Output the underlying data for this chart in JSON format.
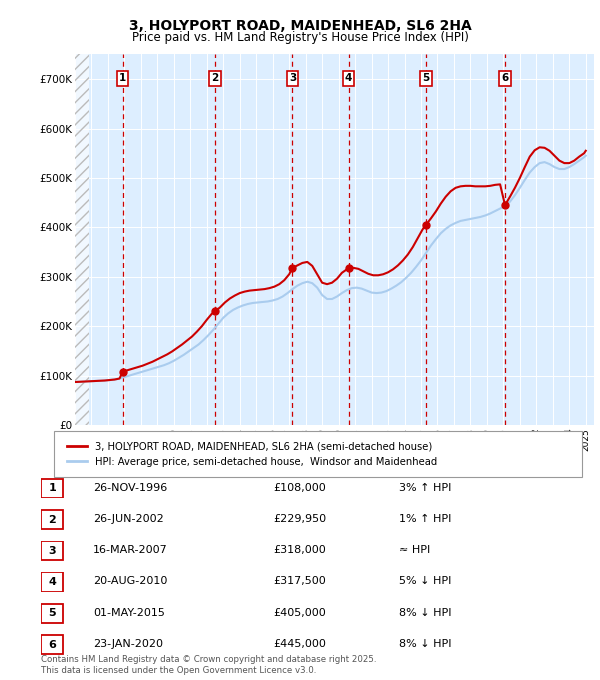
{
  "title": "3, HOLYPORT ROAD, MAIDENHEAD, SL6 2HA",
  "subtitle": "Price paid vs. HM Land Registry's House Price Index (HPI)",
  "hpi_label": "HPI: Average price, semi-detached house,  Windsor and Maidenhead",
  "property_label": "3, HOLYPORT ROAD, MAIDENHEAD, SL6 2HA (semi-detached house)",
  "footer": "Contains HM Land Registry data © Crown copyright and database right 2025.\nThis data is licensed under the Open Government Licence v3.0.",
  "ylim": [
    0,
    750000
  ],
  "yticks": [
    0,
    100000,
    200000,
    300000,
    400000,
    500000,
    600000,
    700000
  ],
  "ytick_labels": [
    "£0",
    "£100K",
    "£200K",
    "£300K",
    "£400K",
    "£500K",
    "£600K",
    "£700K"
  ],
  "sales": [
    {
      "num": 1,
      "date": "26-NOV-1996",
      "year": 1996.9,
      "price": 108000,
      "hpi_rel": "3% ↑ HPI"
    },
    {
      "num": 2,
      "date": "26-JUN-2002",
      "year": 2002.5,
      "price": 229950,
      "hpi_rel": "1% ↑ HPI"
    },
    {
      "num": 3,
      "date": "16-MAR-2007",
      "year": 2007.2,
      "price": 318000,
      "hpi_rel": "≈ HPI"
    },
    {
      "num": 4,
      "date": "20-AUG-2010",
      "year": 2010.6,
      "price": 317500,
      "hpi_rel": "5% ↓ HPI"
    },
    {
      "num": 5,
      "date": "01-MAY-2015",
      "year": 2015.3,
      "price": 405000,
      "hpi_rel": "8% ↓ HPI"
    },
    {
      "num": 6,
      "date": "23-JAN-2020",
      "year": 2020.1,
      "price": 445000,
      "hpi_rel": "8% ↓ HPI"
    }
  ],
  "property_color": "#cc0000",
  "hpi_color": "#aaccee",
  "vline_color": "#cc0000",
  "background_color": "#ddeeff",
  "grid_color": "#ffffff",
  "xlim_start": 1994,
  "xlim_end": 2025.5,
  "hpi_data_years": [
    1994.0,
    1994.3,
    1994.6,
    1994.9,
    1995.2,
    1995.5,
    1995.8,
    1996.1,
    1996.4,
    1996.7,
    1997.0,
    1997.3,
    1997.6,
    1997.9,
    1998.2,
    1998.5,
    1998.8,
    1999.1,
    1999.4,
    1999.7,
    2000.0,
    2000.3,
    2000.6,
    2000.9,
    2001.2,
    2001.5,
    2001.8,
    2002.1,
    2002.4,
    2002.7,
    2003.0,
    2003.3,
    2003.6,
    2003.9,
    2004.2,
    2004.5,
    2004.8,
    2005.1,
    2005.4,
    2005.7,
    2006.0,
    2006.3,
    2006.6,
    2006.9,
    2007.2,
    2007.5,
    2007.8,
    2008.1,
    2008.4,
    2008.7,
    2009.0,
    2009.3,
    2009.6,
    2009.9,
    2010.2,
    2010.5,
    2010.8,
    2011.1,
    2011.4,
    2011.7,
    2012.0,
    2012.3,
    2012.6,
    2012.9,
    2013.2,
    2013.5,
    2013.8,
    2014.1,
    2014.4,
    2014.7,
    2015.0,
    2015.3,
    2015.6,
    2015.9,
    2016.2,
    2016.5,
    2016.8,
    2017.1,
    2017.4,
    2017.7,
    2018.0,
    2018.3,
    2018.6,
    2018.9,
    2019.2,
    2019.5,
    2019.8,
    2020.1,
    2020.4,
    2020.7,
    2021.0,
    2021.3,
    2021.6,
    2021.9,
    2022.2,
    2022.5,
    2022.8,
    2023.1,
    2023.4,
    2023.7,
    2024.0,
    2024.3,
    2024.6,
    2024.9,
    2025.0
  ],
  "hpi_data_values": [
    87000,
    87500,
    88000,
    88500,
    89000,
    89500,
    90000,
    91000,
    92000,
    94000,
    97000,
    100000,
    103000,
    106000,
    109000,
    112000,
    115000,
    118000,
    121000,
    125000,
    130000,
    136000,
    142000,
    149000,
    156000,
    163000,
    172000,
    182000,
    193000,
    205000,
    217000,
    226000,
    233000,
    238000,
    242000,
    245000,
    247000,
    248000,
    249000,
    250000,
    252000,
    255000,
    260000,
    267000,
    275000,
    282000,
    287000,
    290000,
    287000,
    278000,
    263000,
    255000,
    255000,
    260000,
    267000,
    273000,
    277000,
    278000,
    276000,
    272000,
    268000,
    267000,
    268000,
    271000,
    276000,
    282000,
    289000,
    298000,
    308000,
    320000,
    333000,
    348000,
    363000,
    376000,
    388000,
    397000,
    404000,
    409000,
    413000,
    415000,
    417000,
    419000,
    421000,
    424000,
    428000,
    433000,
    438000,
    443000,
    452000,
    465000,
    480000,
    496000,
    511000,
    522000,
    530000,
    532000,
    528000,
    522000,
    518000,
    518000,
    522000,
    528000,
    535000,
    542000,
    545000
  ],
  "prop_data_years": [
    1994.0,
    1994.3,
    1994.6,
    1994.9,
    1995.2,
    1995.5,
    1995.8,
    1996.1,
    1996.4,
    1996.7,
    1996.9,
    1997.2,
    1997.5,
    1997.8,
    1998.1,
    1998.4,
    1998.7,
    1999.0,
    1999.3,
    1999.6,
    1999.9,
    2000.2,
    2000.5,
    2000.8,
    2001.1,
    2001.4,
    2001.7,
    2002.0,
    2002.3,
    2002.5,
    2002.8,
    2003.1,
    2003.4,
    2003.7,
    2004.0,
    2004.3,
    2004.6,
    2004.9,
    2005.2,
    2005.5,
    2005.8,
    2006.1,
    2006.4,
    2006.7,
    2007.0,
    2007.2,
    2007.5,
    2007.8,
    2008.1,
    2008.4,
    2008.7,
    2009.0,
    2009.3,
    2009.6,
    2009.9,
    2010.2,
    2010.5,
    2010.6,
    2010.9,
    2011.2,
    2011.5,
    2011.8,
    2012.1,
    2012.4,
    2012.7,
    2013.0,
    2013.3,
    2013.6,
    2013.9,
    2014.2,
    2014.5,
    2014.8,
    2015.1,
    2015.3,
    2015.6,
    2015.9,
    2016.2,
    2016.5,
    2016.8,
    2017.1,
    2017.4,
    2017.7,
    2018.0,
    2018.3,
    2018.6,
    2018.9,
    2019.2,
    2019.5,
    2019.8,
    2020.1,
    2020.4,
    2020.7,
    2021.0,
    2021.3,
    2021.6,
    2021.9,
    2022.2,
    2022.5,
    2022.8,
    2023.1,
    2023.4,
    2023.7,
    2024.0,
    2024.3,
    2024.6,
    2024.9,
    2025.0
  ],
  "prop_data_values": [
    87000,
    87500,
    88000,
    88500,
    89000,
    89500,
    90000,
    91000,
    92000,
    94000,
    108000,
    111000,
    114000,
    117000,
    120000,
    124000,
    128000,
    133000,
    138000,
    143000,
    149000,
    156000,
    163000,
    171000,
    179000,
    189000,
    200000,
    213000,
    225000,
    229950,
    238000,
    248000,
    256000,
    262000,
    267000,
    270000,
    272000,
    273000,
    274000,
    275000,
    277000,
    280000,
    285000,
    293000,
    305000,
    318000,
    323000,
    328000,
    330000,
    322000,
    305000,
    288000,
    285000,
    288000,
    296000,
    308000,
    315000,
    317500,
    318000,
    316000,
    311000,
    306000,
    303000,
    303000,
    305000,
    309000,
    315000,
    323000,
    333000,
    345000,
    360000,
    378000,
    396000,
    405000,
    418000,
    432000,
    448000,
    462000,
    473000,
    480000,
    483000,
    484000,
    484000,
    483000,
    483000,
    483000,
    484000,
    486000,
    487000,
    445000,
    462000,
    480000,
    500000,
    522000,
    543000,
    556000,
    562000,
    561000,
    555000,
    545000,
    535000,
    530000,
    530000,
    535000,
    543000,
    550000,
    555000
  ]
}
